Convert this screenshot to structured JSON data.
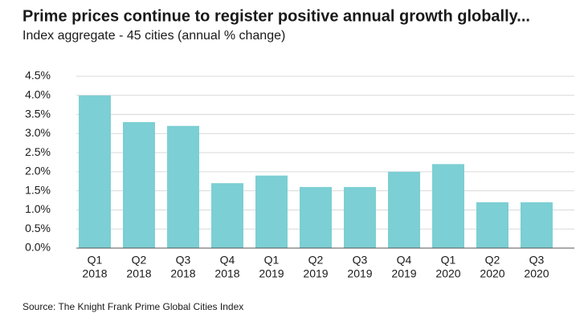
{
  "chart_data": {
    "type": "bar",
    "title": "Prime prices continue to register positive annual growth globally...",
    "subtitle": "Index aggregate - 45 cities  (annual % change)",
    "source": "Source: The Knight Frank Prime Global Cities Index",
    "categories": [
      [
        "Q1",
        "2018"
      ],
      [
        "Q2",
        "2018"
      ],
      [
        "Q3",
        "2018"
      ],
      [
        "Q4",
        "2018"
      ],
      [
        "Q1",
        "2019"
      ],
      [
        "Q2",
        "2019"
      ],
      [
        "Q3",
        "2019"
      ],
      [
        "Q4",
        "2019"
      ],
      [
        "Q1",
        "2020"
      ],
      [
        "Q2",
        "2020"
      ],
      [
        "Q3",
        "2020"
      ]
    ],
    "values": [
      4.0,
      3.3,
      3.2,
      1.7,
      1.9,
      1.6,
      1.6,
      2.0,
      2.2,
      1.2,
      1.2
    ],
    "color": "#7ccfd4",
    "ylim": [
      0,
      4.5
    ],
    "yticks": [
      {
        "value": 0,
        "label": "0.0%"
      },
      {
        "value": 0.5,
        "label": "0.5%"
      },
      {
        "value": 1,
        "label": "1.0%"
      },
      {
        "value": 1.5,
        "label": "1.5%"
      },
      {
        "value": 2,
        "label": "2.0%"
      },
      {
        "value": 2.5,
        "label": "2.5%"
      },
      {
        "value": 3,
        "label": "3.0%"
      },
      {
        "value": 3.5,
        "label": "3.5%"
      },
      {
        "value": 4,
        "label": "4.0%"
      },
      {
        "value": 4.5,
        "label": "4.5%"
      }
    ],
    "grid": true
  }
}
